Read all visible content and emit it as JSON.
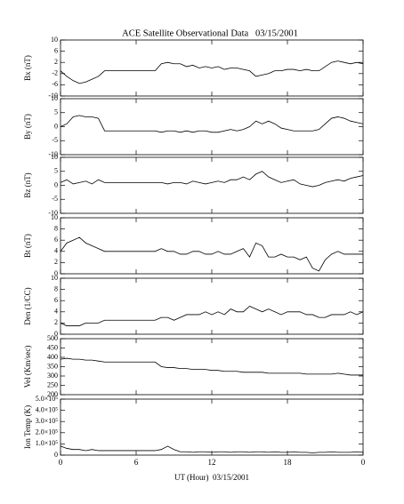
{
  "title": "ACE Satellite Observational Data   03/15/2001",
  "xlabel": "UT (Hour)  03/15/2001",
  "xlim": [
    0,
    24
  ],
  "xticks": [
    0,
    6,
    12,
    18,
    {
      "value": 24,
      "label": "0"
    }
  ],
  "x": [
    0,
    0.5,
    1,
    1.5,
    2,
    2.5,
    3,
    3.5,
    4,
    4.5,
    5,
    5.5,
    6,
    6.5,
    7,
    7.5,
    8,
    8.5,
    9,
    9.5,
    10,
    10.5,
    11,
    11.5,
    12,
    12.5,
    13,
    13.5,
    14,
    14.5,
    15,
    15.5,
    16,
    16.5,
    17,
    17.5,
    18,
    18.5,
    19,
    19.5,
    20,
    20.5,
    21,
    21.5,
    22,
    22.5,
    23,
    23.5,
    24
  ],
  "chart_data": [
    {
      "type": "line",
      "ylabel": "Bx (nT)",
      "ylim": [
        -10,
        10
      ],
      "yticks": [
        -10,
        -6,
        -2,
        2,
        6,
        10
      ],
      "values": [
        -1,
        -3,
        -4.5,
        -5.5,
        -5,
        -4,
        -3,
        -1,
        -1,
        -1,
        -1,
        -1,
        -1,
        -1,
        -1,
        -1,
        1.5,
        2,
        1.5,
        1.5,
        0.5,
        1,
        0,
        0.5,
        0,
        0.5,
        -0.5,
        0,
        0,
        -0.5,
        -1,
        -3,
        -2.5,
        -2,
        -1,
        -1,
        -0.5,
        -0.5,
        -1,
        -0.5,
        -1,
        -1,
        0.5,
        2,
        2.5,
        2,
        1.5,
        2,
        1.5
      ]
    },
    {
      "type": "line",
      "ylabel": "By (nT)",
      "ylim": [
        -10,
        10
      ],
      "yticks": [
        -10,
        -5,
        0,
        5,
        10
      ],
      "values": [
        0,
        1,
        3.5,
        4,
        3.5,
        3.5,
        3,
        -1.5,
        -1.5,
        -1.5,
        -1.5,
        -1.5,
        -1.5,
        -1.5,
        -1.5,
        -1.5,
        -2,
        -1.5,
        -1.5,
        -2,
        -1.5,
        -2,
        -1.5,
        -1.5,
        -2,
        -2,
        -1.5,
        -1,
        -1.5,
        -1,
        0,
        2,
        1,
        2,
        1,
        -0.5,
        -1,
        -1.5,
        -1.5,
        -1.5,
        -1.5,
        -1,
        1,
        3,
        3.5,
        3,
        2,
        1.5,
        1
      ]
    },
    {
      "type": "line",
      "ylabel": "Bz (nT)",
      "ylim": [
        -10,
        10
      ],
      "yticks": [
        -10,
        -5,
        0,
        5,
        10
      ],
      "values": [
        1,
        2,
        0.5,
        1,
        1.5,
        0.5,
        2,
        1,
        1,
        1,
        1,
        1,
        1,
        1,
        1,
        1,
        1,
        0.5,
        1,
        1,
        0.5,
        1.5,
        1,
        0.5,
        1,
        1.5,
        1,
        2,
        2,
        3,
        2,
        4,
        5,
        3,
        2,
        1,
        1.5,
        2,
        0.5,
        0,
        -0.5,
        0,
        1,
        1.5,
        2,
        1.5,
        2.5,
        3,
        3.5
      ]
    },
    {
      "type": "line",
      "ylabel": "Bt (nT)",
      "ylim": [
        0,
        10
      ],
      "yticks": [
        0,
        2,
        4,
        6,
        8,
        10
      ],
      "values": [
        4,
        5.5,
        6,
        6.5,
        5.5,
        5,
        4.5,
        4,
        4,
        4,
        4,
        4,
        4,
        4,
        4,
        4,
        4.5,
        4,
        4,
        3.5,
        3.5,
        4,
        4,
        3.5,
        3.5,
        4,
        3.5,
        3.5,
        4,
        4.5,
        3,
        5.5,
        5,
        3,
        3,
        3.5,
        3,
        3,
        2.5,
        3,
        1,
        0.5,
        2.5,
        3.5,
        4,
        3.5,
        3.5,
        3.5,
        3.5
      ]
    },
    {
      "type": "line",
      "ylabel": "Den (1/CC)",
      "ylim": [
        0,
        10
      ],
      "yticks": [
        0,
        2,
        4,
        6,
        8,
        10
      ],
      "values": [
        2,
        1.5,
        1.5,
        1.5,
        2,
        2,
        2,
        2.5,
        2.5,
        2.5,
        2.5,
        2.5,
        2.5,
        2.5,
        2.5,
        2.5,
        3,
        3,
        2.5,
        3,
        3.5,
        3.5,
        3.5,
        4,
        3.5,
        4,
        3.5,
        4.5,
        4,
        4,
        5,
        4.5,
        4,
        4.5,
        4,
        3.5,
        4,
        4,
        4,
        3.5,
        3.5,
        3,
        3,
        3.5,
        3.5,
        3.5,
        4,
        3.5,
        4
      ]
    },
    {
      "type": "line",
      "ylabel": "Vel (Km/sec)",
      "ylim": [
        200,
        500
      ],
      "yticks": [
        200,
        250,
        300,
        350,
        400,
        450,
        500
      ],
      "values": [
        390,
        395,
        390,
        390,
        385,
        385,
        380,
        375,
        375,
        375,
        375,
        375,
        375,
        375,
        375,
        375,
        350,
        345,
        345,
        340,
        340,
        335,
        335,
        335,
        330,
        330,
        325,
        325,
        325,
        320,
        320,
        320,
        320,
        315,
        315,
        315,
        315,
        315,
        315,
        310,
        310,
        310,
        310,
        310,
        315,
        310,
        305,
        305,
        305
      ]
    },
    {
      "type": "line",
      "ylabel": "Ion Temp (K)",
      "ylim": [
        0,
        500000
      ],
      "yticks": [
        0,
        {
          "value": 100000,
          "label": "1.0×10⁵"
        },
        {
          "value": 200000,
          "label": "2.0×10⁵"
        },
        {
          "value": 300000,
          "label": "3.0×10⁵"
        },
        {
          "value": 400000,
          "label": "4.0×10⁵"
        },
        {
          "value": 500000,
          "label": "5.0×10⁵"
        }
      ],
      "values": [
        80000,
        60000,
        50000,
        50000,
        40000,
        50000,
        40000,
        40000,
        40000,
        40000,
        40000,
        40000,
        40000,
        40000,
        40000,
        40000,
        50000,
        80000,
        50000,
        30000,
        30000,
        25000,
        30000,
        30000,
        25000,
        30000,
        30000,
        25000,
        30000,
        30000,
        25000,
        30000,
        30000,
        25000,
        30000,
        25000,
        25000,
        30000,
        25000,
        25000,
        20000,
        25000,
        25000,
        30000,
        25000,
        25000,
        25000,
        30000,
        25000
      ]
    }
  ]
}
